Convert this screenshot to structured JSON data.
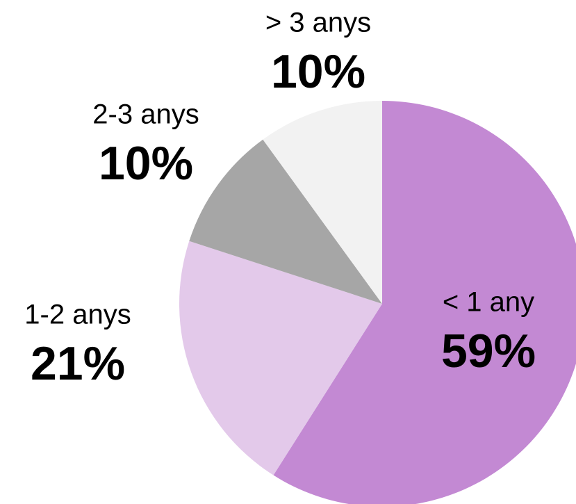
{
  "chart_data": {
    "type": "pie",
    "categories": [
      "< 1 any",
      "1-2 anys",
      "2-3 anys",
      "> 3 anys"
    ],
    "values": [
      59,
      21,
      10,
      10
    ],
    "value_labels": [
      "59%",
      "21%",
      "10%",
      "10%"
    ],
    "colors": [
      "#c389d3",
      "#e3c9ea",
      "#a6a6a6",
      "#f2f2f2"
    ]
  }
}
